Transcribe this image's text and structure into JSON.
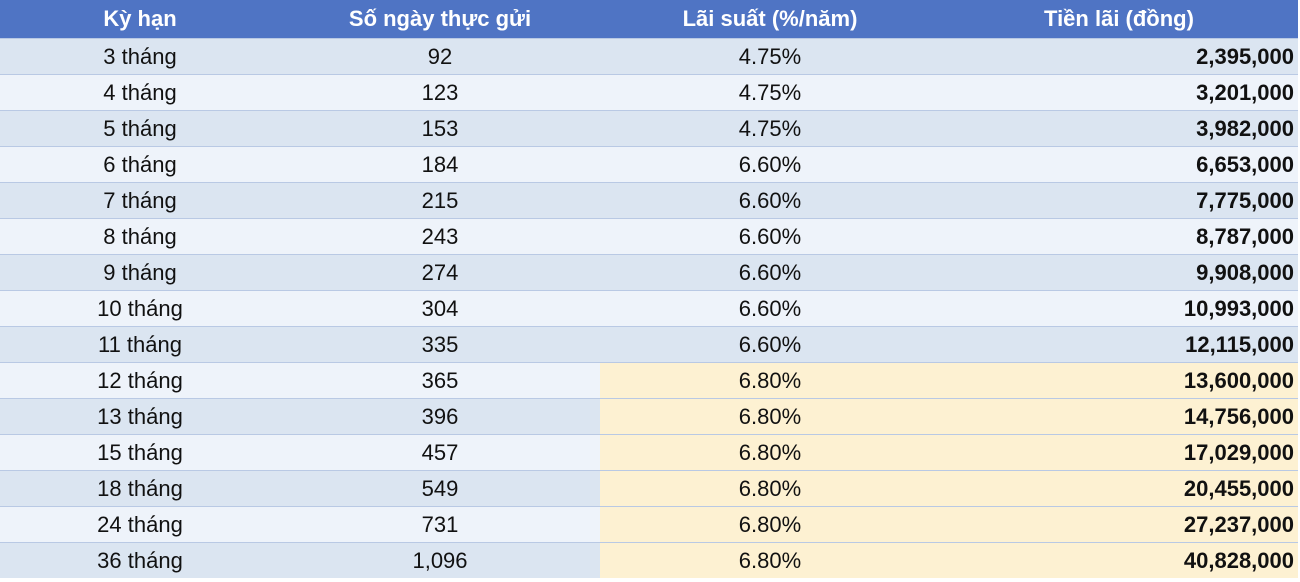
{
  "table": {
    "header": [
      "Kỳ hạn",
      "Số ngày thực gửi",
      "Lãi suất (%/năm)",
      "Tiền lãi (đồng)"
    ],
    "rows": [
      [
        "3 tháng",
        "92",
        "4.75%",
        "2,395,000"
      ],
      [
        "4 tháng",
        "123",
        "4.75%",
        "3,201,000"
      ],
      [
        "5 tháng",
        "153",
        "4.75%",
        "3,982,000"
      ],
      [
        "6 tháng",
        "184",
        "6.60%",
        "6,653,000"
      ],
      [
        "7 tháng",
        "215",
        "6.60%",
        "7,775,000"
      ],
      [
        "8 tháng",
        "243",
        "6.60%",
        "8,787,000"
      ],
      [
        "9 tháng",
        "274",
        "6.60%",
        "9,908,000"
      ],
      [
        "10 tháng",
        "304",
        "6.60%",
        "10,993,000"
      ],
      [
        "11 tháng",
        "335",
        "6.60%",
        "12,115,000"
      ],
      [
        "12 tháng",
        "365",
        "6.80%",
        "13,600,000"
      ],
      [
        "13 tháng",
        "396",
        "6.80%",
        "14,756,000"
      ],
      [
        "15 tháng",
        "457",
        "6.80%",
        "17,029,000"
      ],
      [
        "18 tháng",
        "549",
        "6.80%",
        "20,455,000"
      ],
      [
        "24 tháng",
        "731",
        "6.80%",
        "27,237,000"
      ],
      [
        "36 tháng",
        "1,096",
        "6.80%",
        "40,828,000"
      ]
    ]
  }
}
